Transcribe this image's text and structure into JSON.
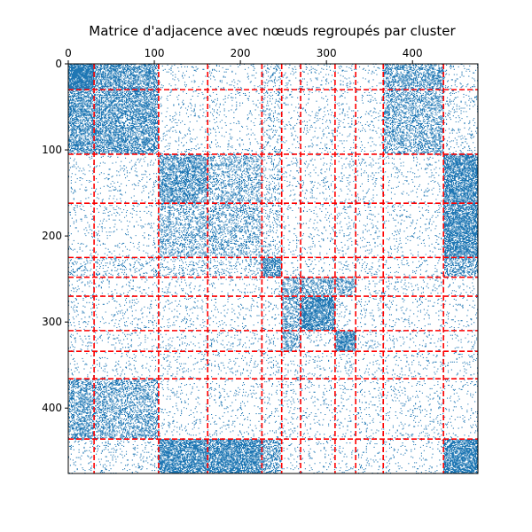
{
  "chart_data": {
    "type": "heatmap",
    "title": "Matrice d'adjacence avec nœuds regroupés par cluster",
    "xlabel": "",
    "ylabel": "",
    "n_nodes": 476,
    "xlim": [
      0,
      476
    ],
    "ylim": [
      476,
      0
    ],
    "x_axis_position": "top",
    "x_ticks": [
      0,
      100,
      200,
      300,
      400
    ],
    "y_ticks": [
      0,
      100,
      200,
      300,
      400
    ],
    "grid": false,
    "marker_color": "#1f77b4",
    "cluster_line_color": "#ff0000",
    "cluster_line_style": "dashed",
    "cluster_boundaries": [
      30,
      105,
      162,
      225,
      248,
      270,
      310,
      334,
      366,
      436
    ],
    "blocks": [
      {
        "rows": [
          0,
          105
        ],
        "cols": [
          0,
          105
        ],
        "density": 0.55
      },
      {
        "rows": [
          0,
          30
        ],
        "cols": [
          0,
          30
        ],
        "density": 0.85
      },
      {
        "rows": [
          0,
          30
        ],
        "cols": [
          366,
          436
        ],
        "density": 0.45
      },
      {
        "rows": [
          30,
          105
        ],
        "cols": [
          366,
          436
        ],
        "density": 0.25
      },
      {
        "rows": [
          105,
          162
        ],
        "cols": [
          105,
          162
        ],
        "density": 0.5
      },
      {
        "rows": [
          105,
          162
        ],
        "cols": [
          162,
          225
        ],
        "density": 0.22
      },
      {
        "rows": [
          162,
          225
        ],
        "cols": [
          105,
          225
        ],
        "density": 0.2
      },
      {
        "rows": [
          105,
          248
        ],
        "cols": [
          436,
          476
        ],
        "density": 0.75
      },
      {
        "rows": [
          225,
          248
        ],
        "cols": [
          225,
          248
        ],
        "density": 0.7
      },
      {
        "rows": [
          225,
          248
        ],
        "cols": [
          0,
          225
        ],
        "density": 0.12
      },
      {
        "rows": [
          248,
          270
        ],
        "cols": [
          248,
          334
        ],
        "density": 0.35
      },
      {
        "rows": [
          270,
          310
        ],
        "cols": [
          270,
          310
        ],
        "density": 0.8
      },
      {
        "rows": [
          310,
          334
        ],
        "cols": [
          310,
          334
        ],
        "density": 0.85
      },
      {
        "rows": [
          270,
          334
        ],
        "cols": [
          248,
          270
        ],
        "density": 0.3
      },
      {
        "rows": [
          366,
          436
        ],
        "cols": [
          0,
          105
        ],
        "density": 0.35
      },
      {
        "rows": [
          436,
          476
        ],
        "cols": [
          105,
          225
        ],
        "density": 0.8
      },
      {
        "rows": [
          436,
          476
        ],
        "cols": [
          436,
          476
        ],
        "density": 0.9
      },
      {
        "rows": [
          436,
          476
        ],
        "cols": [
          0,
          105
        ],
        "density": 0.04
      }
    ],
    "background_density": 0.025
  }
}
